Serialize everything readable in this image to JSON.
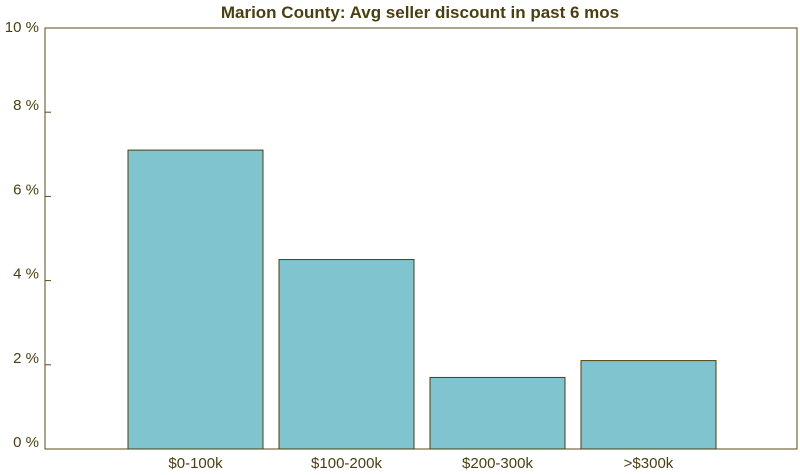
{
  "colors": {
    "text": "#4a3f12",
    "axis": "#5a4a1a",
    "bar_fill": "#80c4cf",
    "bar_stroke": "#4a3f12",
    "background": "#ffffff"
  },
  "chart_data": {
    "type": "bar",
    "title": "Marion County: Avg seller discount in past 6 mos",
    "xlabel": "",
    "ylabel": "",
    "categories": [
      "$0-100k",
      "$100-200k",
      "$200-300k",
      ">$300k"
    ],
    "values": [
      7.1,
      4.5,
      1.7,
      2.1
    ],
    "ylim": [
      0,
      10
    ],
    "yticks": [
      0,
      2,
      4,
      6,
      8,
      10
    ],
    "ytick_labels": [
      "0 %",
      "2 %",
      "4 %",
      "6 %",
      "8 %",
      "10 %"
    ],
    "grid": false,
    "legend": "none"
  }
}
